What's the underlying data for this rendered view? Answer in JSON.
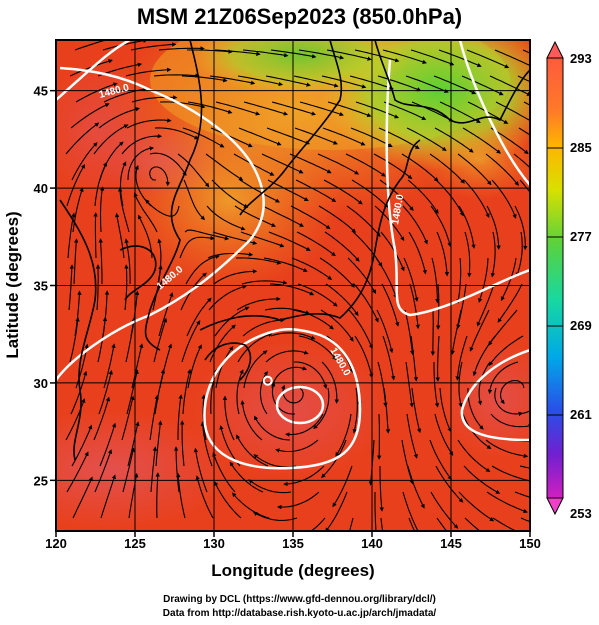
{
  "title": "MSM 21Z06Sep2023 (850.0hPa)",
  "map": {
    "type": "wind streamlines over temperature shading",
    "xlabel": "Longitude (degrees)",
    "ylabel": "Latitude  (degrees)",
    "x_range": [
      120,
      150
    ],
    "y_range": [
      22.4,
      47.6
    ],
    "x_ticks": [
      "120",
      "125",
      "130",
      "135",
      "140",
      "145",
      "150"
    ],
    "y_ticks": [
      "25",
      "30",
      "35",
      "40",
      "45"
    ],
    "grid": true,
    "contour_labels": [
      "1480.0",
      "1480.0",
      "1480.0",
      "1480.0"
    ],
    "cyclone_center": {
      "lon": 135.3,
      "lat": 29.6
    },
    "colors": {
      "warm": "#e8401c",
      "hot": "#e05a58",
      "mid": "#f07a10",
      "yellow": "#e8c828",
      "green": "#6ad030"
    }
  },
  "colorbar": {
    "labels": [
      "293",
      "285",
      "277",
      "269",
      "261",
      "253"
    ],
    "colors": [
      "#ff5a3c",
      "#ff7a28",
      "#ffb400",
      "#d8e000",
      "#5ad23c",
      "#18d8a0",
      "#00a8e8",
      "#2850e8",
      "#7020d0",
      "#d020c0"
    ]
  },
  "credits": {
    "line1": "Drawing by DCL (https://www.gfd-dennou.org/library/dcl/)",
    "line2": "Data from http://database.rish.kyoto-u.ac.jp/arch/jmadata/"
  }
}
